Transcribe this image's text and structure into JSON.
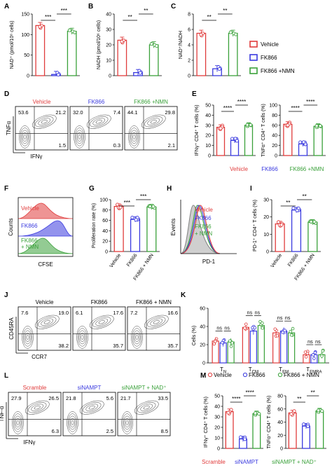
{
  "colors": {
    "vehicle": "#e03c3c",
    "fk866": "#3a3adf",
    "nmn": "#3aa13a",
    "gray": "#888888",
    "black": "#000000"
  },
  "legend": {
    "items": [
      "Vehicle",
      "FK866",
      "FK866 +NMN"
    ]
  },
  "panel_labels": [
    "A",
    "B",
    "C",
    "D",
    "E",
    "F",
    "G",
    "H",
    "I",
    "J",
    "K",
    "L",
    "M"
  ],
  "flow": {
    "D": {
      "headers": [
        "Vehicle",
        "FK866",
        "FK866 +NMN"
      ],
      "ylabel": "TNFα",
      "xlabel": "IFNγ",
      "quads": [
        [
          "53.6",
          "21.2",
          "1.5"
        ],
        [
          "32.0",
          "7.4",
          "0.3"
        ],
        [
          "44.1",
          "29.8",
          "2.1"
        ]
      ]
    },
    "J": {
      "headers": [
        "Vehicle",
        "FK866",
        "FK866 + NMN"
      ],
      "ylabel": "CD45RA",
      "xlabel": "CCR7",
      "quads": [
        [
          "7.6",
          "19.0",
          "38.2"
        ],
        [
          "6.1",
          "17.6",
          "35.7"
        ],
        [
          "7.2",
          "16.6",
          "35.7"
        ]
      ]
    },
    "L": {
      "headers": [
        "Scramble",
        "siNAMPT",
        "siNAMPT + NAD⁺"
      ],
      "ylabel": "TNF-α",
      "xlabel": "IFNγ",
      "quads": [
        [
          "27.9",
          "26.5",
          "6.3"
        ],
        [
          "21.8",
          "5.6",
          "2.5"
        ],
        [
          "21.7",
          "33.5",
          "8.5"
        ]
      ]
    }
  },
  "hist_F": {
    "labels": [
      "Vehicle",
      "FK866",
      "FK866\n+ NMN"
    ],
    "ylabel": "Counts",
    "xlabel": "CFSE"
  },
  "hist_H": {
    "labels": [
      "Vehicle",
      "FK866",
      "FK866\n+ NMN"
    ],
    "ylabel": "Events",
    "xlabel": "PD-1"
  },
  "legend_E": [
    "Vehicle",
    "FK866",
    "FK866 +NMN"
  ],
  "legend_K": [
    "Vehicle",
    "FK866",
    "FK866 + NMN"
  ],
  "chart_data": [
    {
      "panel": "A",
      "type": "bar",
      "categories": [
        "Vehicle",
        "FK866",
        "FK866 +NMN"
      ],
      "values": [
        122,
        3,
        108
      ],
      "ylabel": "NAD⁺ (pmol/10⁶ cells)",
      "ylim": [
        0,
        150
      ],
      "yticks": [
        0,
        50,
        100,
        150
      ],
      "significance": [
        "***",
        "***"
      ]
    },
    {
      "panel": "B",
      "type": "bar",
      "categories": [
        "Vehicle",
        "FK866",
        "FK866 +NMN"
      ],
      "values": [
        23,
        2,
        20
      ],
      "ylabel": "NADH (pmol/10⁶ cells)",
      "ylim": [
        0,
        40
      ],
      "yticks": [
        0,
        10,
        20,
        30,
        40
      ],
      "significance": [
        "**",
        "**"
      ]
    },
    {
      "panel": "C",
      "type": "bar",
      "categories": [
        "Vehicle",
        "FK866",
        "FK866 +NMN"
      ],
      "values": [
        5.5,
        0.9,
        5.5
      ],
      "ylabel": "NAD⁺/NADH",
      "ylim": [
        0,
        8
      ],
      "yticks": [
        0,
        2,
        4,
        6,
        8
      ],
      "significance": [
        "**",
        "**"
      ]
    },
    {
      "panel": "E1",
      "type": "bar",
      "categories": [
        "Vehicle",
        "FK866",
        "FK866 +NMN"
      ],
      "values": [
        28,
        15,
        30
      ],
      "ylabel": "IFNγ⁺ CD4⁺ T cells (%)",
      "ylim": [
        0,
        50
      ],
      "yticks": [
        0,
        10,
        20,
        30,
        40,
        50
      ],
      "significance": [
        "****",
        "****"
      ]
    },
    {
      "panel": "E2",
      "type": "bar",
      "categories": [
        "Vehicle",
        "FK866",
        "FK866 +NMN"
      ],
      "values": [
        62,
        23,
        58
      ],
      "ylabel": "TNFα⁺ CD4⁺ T cells (%)",
      "ylim": [
        0,
        100
      ],
      "yticks": [
        0,
        20,
        40,
        60,
        80,
        100
      ],
      "significance": [
        "****",
        "****"
      ]
    },
    {
      "panel": "G",
      "type": "bar",
      "categories": [
        "Vehicle",
        "FK866",
        "FK866 + NMN"
      ],
      "values": [
        87,
        62,
        86
      ],
      "ylabel": "Proliferation rate (%)",
      "ylim": [
        0,
        100
      ],
      "yticks": [
        0,
        20,
        40,
        60,
        80,
        100
      ],
      "significance": [
        "***",
        "***"
      ]
    },
    {
      "panel": "I",
      "type": "bar",
      "categories": [
        "Vehicle",
        "FK866",
        "FK866 + NMN"
      ],
      "values": [
        16,
        24,
        17
      ],
      "ylabel": "PD-1⁺ CD4⁺ T cells (%)",
      "ylim": [
        0,
        30
      ],
      "yticks": [
        0,
        10,
        20,
        30
      ],
      "significance": [
        "**",
        "**"
      ]
    },
    {
      "panel": "K",
      "type": "bar",
      "categories": [
        "T_N",
        "T_CM",
        "T_EM",
        "T_EMRA"
      ],
      "series": [
        {
          "name": "Vehicle",
          "values": [
            24,
            39,
            33,
            9
          ]
        },
        {
          "name": "FK866",
          "values": [
            22,
            35,
            35,
            9
          ]
        },
        {
          "name": "FK866 + NMN",
          "values": [
            23,
            41,
            33,
            9
          ]
        }
      ],
      "ylabel": "Cells (%)",
      "ylim": [
        0,
        60
      ],
      "yticks": [
        0,
        20,
        40,
        60
      ],
      "significance": [
        "ns",
        "ns",
        "ns",
        "ns",
        "ns",
        "ns",
        "ns",
        "ns"
      ]
    },
    {
      "panel": "M1",
      "type": "bar",
      "categories": [
        "Scramble",
        "siNAMPT",
        "siNAMPT + NAD⁺"
      ],
      "values": [
        35,
        9,
        33
      ],
      "ylabel": "IFNγ⁺ CD4⁺ T cells (%)",
      "ylim": [
        0,
        50
      ],
      "yticks": [
        0,
        10,
        20,
        30,
        40,
        50
      ],
      "significance": [
        "****",
        "****"
      ]
    },
    {
      "panel": "M2",
      "type": "bar",
      "categories": [
        "Scramble",
        "siNAMPT",
        "siNAMPT + NAD⁺"
      ],
      "values": [
        54,
        34,
        57
      ],
      "ylabel": "TNFα⁺ CD4⁺ T cells (%)",
      "ylim": [
        0,
        80
      ],
      "yticks": [
        0,
        20,
        40,
        60,
        80
      ],
      "significance": [
        "**",
        "**"
      ]
    }
  ]
}
